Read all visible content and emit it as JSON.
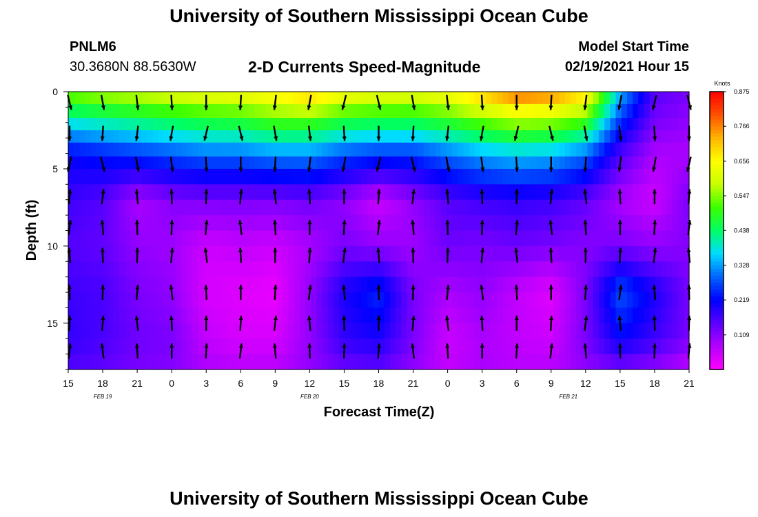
{
  "header": {
    "title": "University of Southern Mississippi Ocean Cube",
    "station_id": "PNLM6",
    "station_coords": "30.3680N 88.5630W",
    "chart_title": "2-D Currents Speed-Magnitude",
    "model_start_label": "Model Start Time",
    "model_start_value": "02/19/2021 Hour 15"
  },
  "footer": {
    "title": "University of Southern Mississippi Ocean Cube"
  },
  "chart_data": {
    "type": "heatmap",
    "title": "2-D Currents Speed-Magnitude",
    "xlabel": "Forecast Time(Z)",
    "ylabel": "Depth (ft)",
    "x_tick_labels": [
      "15",
      "18",
      "21",
      "0",
      "3",
      "6",
      "9",
      "12",
      "15",
      "18",
      "21",
      "0",
      "3",
      "6",
      "9",
      "12",
      "15",
      "18",
      "21"
    ],
    "x_hours_since_start": [
      0,
      3,
      6,
      9,
      12,
      15,
      18,
      21,
      24,
      27,
      30,
      33,
      36,
      39,
      42,
      45,
      48,
      51,
      54
    ],
    "xlim_hours": [
      0,
      54
    ],
    "date_labels": [
      {
        "text": "FEB 19",
        "hour": 3
      },
      {
        "text": "FEB 20",
        "hour": 21
      },
      {
        "text": "FEB 21",
        "hour": 43.5
      }
    ],
    "y_tick_labels": [
      "0",
      "5",
      "10",
      "15"
    ],
    "y_ticks": [
      0,
      5,
      10,
      15
    ],
    "ylim_ft": [
      0,
      18
    ],
    "y_inverted": true,
    "colorbar": {
      "units": "Knots",
      "labels": [
        "0.875",
        "0.766",
        "0.656",
        "0.547",
        "0.438",
        "0.328",
        "0.219",
        "0.109"
      ],
      "values": [
        0.875,
        0.766,
        0.656,
        0.547,
        0.438,
        0.328,
        0.219,
        0.109
      ],
      "range": [
        0,
        0.875
      ],
      "colors": [
        "#ff00ff",
        "#b400ff",
        "#5a00ff",
        "#0000ff",
        "#0064ff",
        "#00dcff",
        "#00ff64",
        "#3cff00",
        "#c8ff00",
        "#ffff00",
        "#ffb400",
        "#ff5000",
        "#ff0000"
      ]
    },
    "depth_levels_ft": [
      0,
      0.8,
      1.7,
      2.5,
      3.3,
      4.2,
      5,
      6,
      7,
      8,
      9,
      10,
      11,
      12,
      13,
      14,
      15,
      16,
      17,
      18
    ],
    "speed_profiles_knots": {
      "description": "approximate speed by depth at each 3-hour forecast step",
      "hours": [
        0,
        3,
        6,
        9,
        12,
        15,
        18,
        21,
        24,
        27,
        30,
        33,
        36,
        39,
        42,
        45,
        48,
        51,
        54
      ],
      "surface": [
        0.55,
        0.58,
        0.6,
        0.62,
        0.64,
        0.65,
        0.68,
        0.72,
        0.66,
        0.64,
        0.63,
        0.66,
        0.72,
        0.8,
        0.78,
        0.7,
        0.35,
        0.15,
        0.12
      ],
      "depth_2ft": [
        0.38,
        0.4,
        0.42,
        0.44,
        0.46,
        0.47,
        0.5,
        0.5,
        0.46,
        0.45,
        0.45,
        0.48,
        0.52,
        0.56,
        0.55,
        0.5,
        0.25,
        0.12,
        0.1
      ],
      "depth_4ft": [
        0.22,
        0.24,
        0.26,
        0.28,
        0.3,
        0.3,
        0.32,
        0.32,
        0.28,
        0.26,
        0.26,
        0.3,
        0.34,
        0.36,
        0.35,
        0.3,
        0.16,
        0.08,
        0.08
      ],
      "depth_7ft": [
        0.17,
        0.15,
        0.08,
        0.11,
        0.12,
        0.12,
        0.12,
        0.13,
        0.1,
        0.05,
        0.1,
        0.15,
        0.17,
        0.18,
        0.17,
        0.14,
        0.08,
        0.05,
        0.12
      ],
      "depth_10ft": [
        0.15,
        0.14,
        0.1,
        0.09,
        0.05,
        0.06,
        0.05,
        0.08,
        0.12,
        0.1,
        0.09,
        0.13,
        0.12,
        0.13,
        0.12,
        0.11,
        0.12,
        0.1,
        0.11
      ],
      "depth_13ft": [
        0.17,
        0.16,
        0.12,
        0.1,
        0.04,
        0.03,
        0.02,
        0.1,
        0.2,
        0.25,
        0.12,
        0.08,
        0.1,
        0.06,
        0.03,
        0.12,
        0.28,
        0.2,
        0.12
      ],
      "depth_16ft": [
        0.18,
        0.16,
        0.13,
        0.12,
        0.06,
        0.04,
        0.04,
        0.1,
        0.18,
        0.2,
        0.12,
        0.05,
        0.08,
        0.06,
        0.05,
        0.12,
        0.22,
        0.17,
        0.12
      ],
      "depth_18ft": [
        0.15,
        0.14,
        0.12,
        0.11,
        0.08,
        0.07,
        0.07,
        0.1,
        0.13,
        0.14,
        0.1,
        0.06,
        0.08,
        0.07,
        0.07,
        0.1,
        0.12,
        0.1,
        0.06
      ]
    },
    "arrow_rows_ft": [
      0.7,
      2.7,
      4.7,
      6.8,
      8.8,
      10.6,
      13,
      15,
      16.8
    ],
    "arrow_direction": "arrows indicate current direction; mostly southward near surface, northward at depth"
  }
}
